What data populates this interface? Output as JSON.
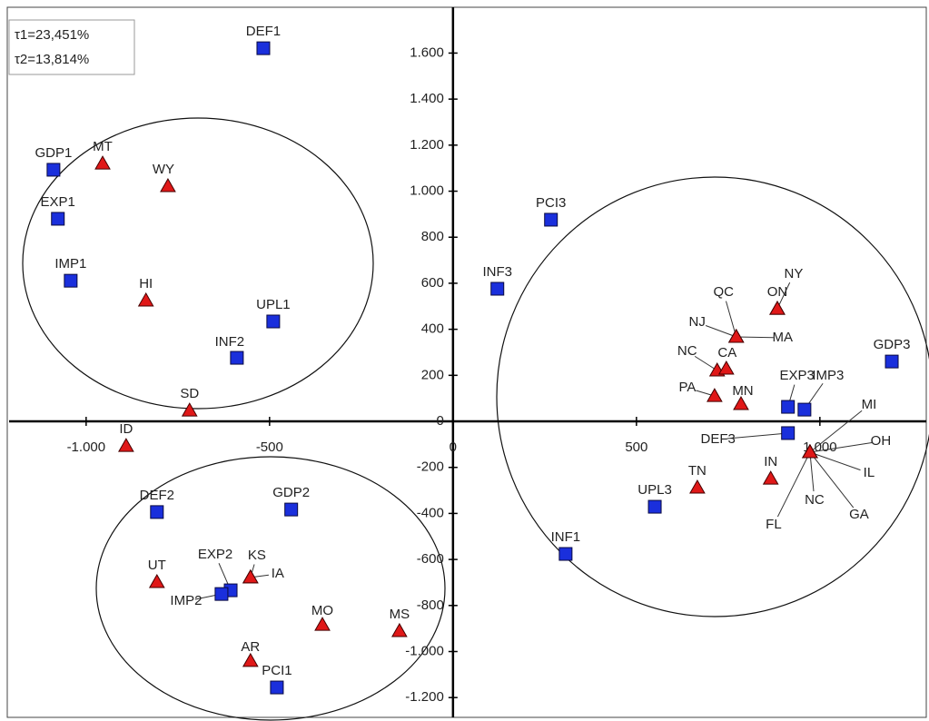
{
  "chart_data": {
    "type": "scatter",
    "annotations": [
      "τ1=23,451%",
      "τ2=13,814%"
    ],
    "xlim": [
      -1210,
      1290
    ],
    "ylim": [
      -1286,
      1799
    ],
    "xticks": [
      {
        "value": -1000,
        "label": "-1.000"
      },
      -500,
      0,
      500,
      {
        "value": 1000,
        "label": "1.000"
      }
    ],
    "yticks": [
      {
        "value": -1200,
        "label": "-1.200"
      },
      {
        "value": -1000,
        "label": "-1.000"
      },
      -800,
      -600,
      -400,
      -200,
      0,
      200,
      400,
      600,
      800,
      {
        "value": 1000,
        "label": "1.000"
      },
      {
        "value": 1200,
        "label": "1.200"
      },
      {
        "value": 1400,
        "label": "1.400"
      },
      {
        "value": 1600,
        "label": "1.600"
      }
    ],
    "series": [
      {
        "color": "#1a2fdc",
        "marker": "square",
        "labels": [
          "DEF1",
          "GDP1",
          "EXP1",
          "IMP1",
          "UPL1",
          "INF2",
          "INF3",
          "PCI3",
          "GDP3",
          "EXP3",
          "IMP3",
          "DEF3",
          "UPL3",
          "INF1",
          "DEF2",
          "GDP2",
          "EXP2",
          "IMP2",
          "PCI1"
        ],
        "x": [
          -517,
          -1089,
          -1077,
          -1042,
          -490,
          -589,
          121,
          267,
          1196,
          913,
          958,
          913,
          550,
          307,
          -807,
          -441,
          -606,
          -631,
          -480
        ],
        "values": [
          1621,
          1093,
          880,
          611,
          434,
          276,
          576,
          876,
          260,
          63,
          51,
          -51,
          -371,
          -576,
          -394,
          -383,
          -734,
          -750,
          -1156
        ]
      },
      {
        "color": "#e01818",
        "marker": "triangle",
        "labels": [
          "MT",
          "WY",
          "HI",
          "SD",
          "ID",
          "NY",
          "ON",
          "QC",
          "NJ",
          "MA",
          "NC",
          "CA",
          "PA",
          "MN",
          "IN",
          "TN",
          "MI",
          "OH",
          "IL",
          "GA",
          "NC",
          "FL",
          "UT",
          "KS",
          "IA",
          "MO",
          "MS",
          "AR"
        ],
        "x": [
          -955,
          -777,
          -837,
          -718,
          -891,
          884,
          884,
          772,
          772,
          772,
          720,
          745,
          713,
          785,
          866,
          666,
          973,
          973,
          973,
          973,
          973,
          973,
          -807,
          -552,
          -552,
          -356,
          -146,
          -552
        ],
        "values": [
          1120,
          1022,
          525,
          47,
          -107,
          489,
          489,
          367,
          367,
          367,
          221,
          229,
          110,
          75,
          -249,
          -288,
          -134,
          -134,
          -134,
          -134,
          -134,
          -134,
          -698,
          -678,
          -678,
          -884,
          -911,
          -1041
        ]
      }
    ]
  }
}
